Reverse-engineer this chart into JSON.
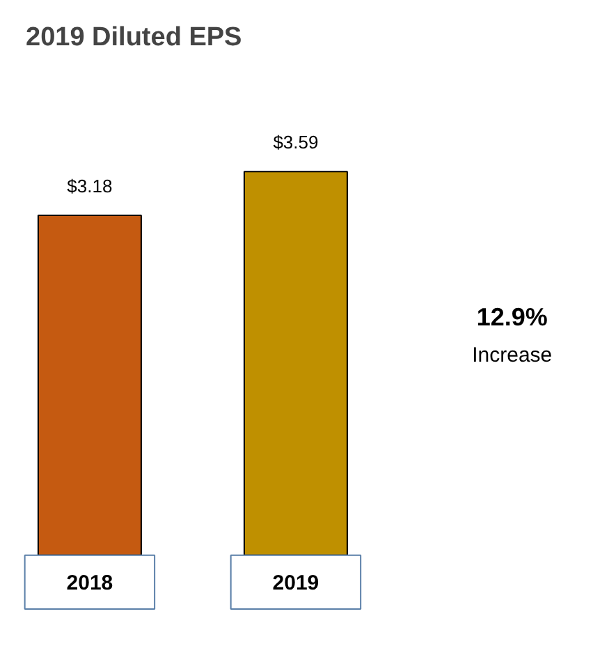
{
  "chart_data": {
    "type": "bar",
    "title": "2019 Diluted EPS",
    "categories": [
      "2018",
      "2019"
    ],
    "values": [
      3.18,
      3.59
    ],
    "colors": [
      "#c55a11",
      "#bf9000"
    ],
    "value_labels": [
      "$3.18",
      "$3.59"
    ],
    "annotations": [
      "12.9%",
      "Increase"
    ]
  }
}
